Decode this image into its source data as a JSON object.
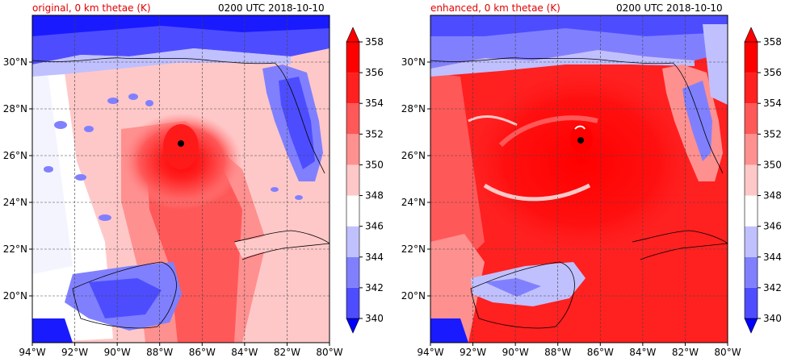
{
  "panels": [
    {
      "id": "original",
      "title_left": "original, 0 km thetae (K)",
      "title_right": "0200 UTC 2018-10-10",
      "storm_center": {
        "lon": -87.0,
        "lat": 26.7
      }
    },
    {
      "id": "enhanced",
      "title_left": "enhanced, 0 km thetae (K)",
      "title_right": "0200 UTC 2018-10-10",
      "storm_center": {
        "lon": -86.95,
        "lat": 26.8
      }
    }
  ],
  "map_extent": {
    "lon_min": -94,
    "lon_max": -80,
    "lat_min": 18,
    "lat_max": 32
  },
  "lon_ticks": [
    "94°W",
    "92°W",
    "90°W",
    "88°W",
    "86°W",
    "84°W",
    "82°W",
    "80°W"
  ],
  "lon_tick_values": [
    -94,
    -92,
    -90,
    -88,
    -86,
    -84,
    -82,
    -80
  ],
  "lat_ticks": [
    "20°N",
    "22°N",
    "24°N",
    "26°N",
    "28°N",
    "30°N"
  ],
  "lat_tick_values": [
    20,
    22,
    24,
    26,
    28,
    30
  ],
  "colorbar": {
    "levels": [
      340,
      342,
      344,
      346,
      348,
      350,
      352,
      354,
      356,
      358
    ],
    "labels": [
      "340",
      "342",
      "344",
      "346",
      "348",
      "350",
      "352",
      "354",
      "356",
      "358"
    ],
    "colors": [
      "#1a1aff",
      "#4d4dff",
      "#8080ff",
      "#c0c0ff",
      "#ffffff",
      "#ffc8c8",
      "#ff9090",
      "#ff5858",
      "#ff2020",
      "#ff0000"
    ],
    "under_color": "#0000ff",
    "over_color": "#ff0000"
  }
}
